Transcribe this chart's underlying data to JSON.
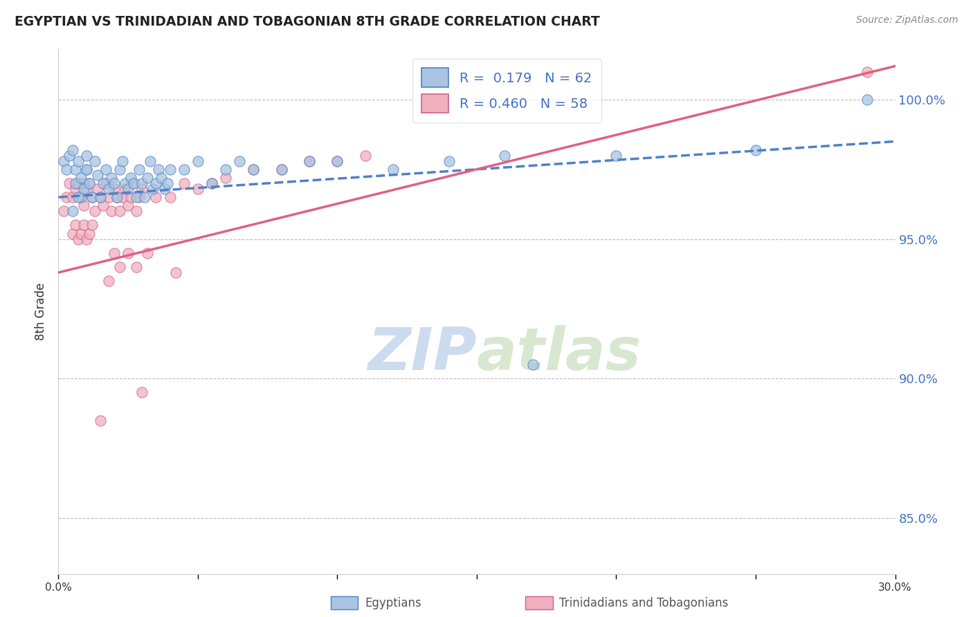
{
  "title": "EGYPTIAN VS TRINIDADIAN AND TOBAGONIAN 8TH GRADE CORRELATION CHART",
  "source": "Source: ZipAtlas.com",
  "ylabel": "8th Grade",
  "xmin": 0.0,
  "xmax": 30.0,
  "ymin": 83.0,
  "ymax": 101.8,
  "yticks_right": [
    85.0,
    90.0,
    95.0,
    100.0
  ],
  "ytick_labels_right": [
    "85.0%",
    "90.0%",
    "95.0%",
    "100.0%"
  ],
  "color_egyptian": "#a8c4e0",
  "color_trinidadian": "#f0b0c0",
  "color_trend_egyptian": "#5080c8",
  "color_trend_trinidadian": "#e06080",
  "watermark_color": "#ccdcee",
  "trend_e_x0": 0.0,
  "trend_e_y0": 96.5,
  "trend_e_x1": 30.0,
  "trend_e_y1": 98.5,
  "trend_t_x0": 0.0,
  "trend_t_y0": 93.8,
  "trend_t_x1": 30.0,
  "trend_t_y1": 101.2,
  "egyptian_x": [
    0.2,
    0.3,
    0.4,
    0.5,
    0.6,
    0.7,
    0.8,
    0.9,
    1.0,
    1.0,
    0.5,
    0.6,
    0.7,
    0.8,
    0.9,
    1.0,
    1.1,
    1.2,
    1.3,
    1.4,
    1.5,
    1.6,
    1.7,
    1.8,
    1.9,
    2.0,
    2.1,
    2.2,
    2.3,
    2.4,
    2.5,
    2.6,
    2.7,
    2.8,
    2.9,
    3.0,
    3.1,
    3.2,
    3.3,
    3.4,
    3.5,
    3.6,
    3.7,
    3.8,
    3.9,
    4.0,
    4.5,
    5.0,
    5.5,
    6.0,
    6.5,
    7.0,
    8.0,
    9.0,
    10.0,
    12.0,
    14.0,
    16.0,
    17.0,
    20.0,
    25.0,
    29.0
  ],
  "egyptian_y": [
    97.8,
    97.5,
    98.0,
    98.2,
    97.5,
    97.8,
    96.5,
    97.0,
    97.5,
    98.0,
    96.0,
    97.0,
    96.5,
    97.2,
    96.8,
    97.5,
    97.0,
    96.5,
    97.8,
    97.3,
    96.5,
    97.0,
    97.5,
    96.8,
    97.2,
    97.0,
    96.5,
    97.5,
    97.8,
    97.0,
    96.8,
    97.2,
    97.0,
    96.5,
    97.5,
    97.0,
    96.5,
    97.2,
    97.8,
    96.8,
    97.0,
    97.5,
    97.2,
    96.8,
    97.0,
    97.5,
    97.5,
    97.8,
    97.0,
    97.5,
    97.8,
    97.5,
    97.5,
    97.8,
    97.8,
    97.5,
    97.8,
    98.0,
    90.5,
    98.0,
    98.2,
    100.0
  ],
  "trinidadian_x": [
    0.2,
    0.3,
    0.4,
    0.5,
    0.6,
    0.7,
    0.8,
    0.9,
    1.0,
    1.1,
    1.2,
    1.3,
    1.4,
    1.5,
    1.6,
    1.7,
    1.8,
    1.9,
    2.0,
    2.1,
    2.2,
    2.3,
    2.4,
    2.5,
    2.6,
    2.7,
    2.8,
    2.9,
    3.0,
    3.5,
    4.0,
    4.5,
    5.0,
    5.5,
    6.0,
    7.0,
    8.0,
    9.0,
    10.0,
    11.0,
    0.5,
    0.6,
    0.7,
    0.8,
    0.9,
    1.0,
    1.1,
    1.2,
    1.8,
    2.0,
    2.2,
    2.5,
    2.8,
    3.2,
    4.2,
    1.5,
    3.0,
    29.0
  ],
  "trinidadian_y": [
    96.0,
    96.5,
    97.0,
    96.5,
    96.8,
    97.0,
    96.5,
    96.2,
    96.8,
    97.0,
    96.5,
    96.0,
    96.8,
    96.5,
    96.2,
    97.0,
    96.5,
    96.0,
    96.8,
    96.5,
    96.0,
    96.5,
    96.8,
    96.2,
    96.5,
    97.0,
    96.0,
    96.5,
    96.8,
    96.5,
    96.5,
    97.0,
    96.8,
    97.0,
    97.2,
    97.5,
    97.5,
    97.8,
    97.8,
    98.0,
    95.2,
    95.5,
    95.0,
    95.2,
    95.5,
    95.0,
    95.2,
    95.5,
    93.5,
    94.5,
    94.0,
    94.5,
    94.0,
    94.5,
    93.8,
    88.5,
    89.5,
    101.0
  ]
}
